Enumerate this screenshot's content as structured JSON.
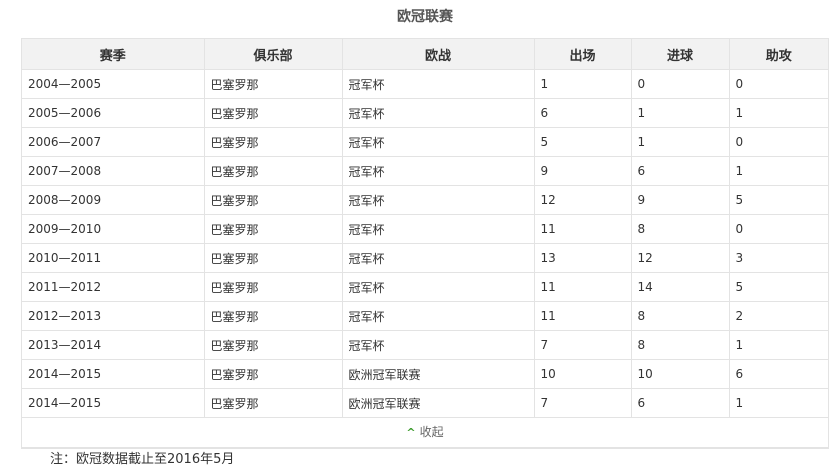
{
  "title": "欧冠联赛",
  "headers": [
    "赛季",
    "俱乐部",
    "欧战",
    "出场",
    "进球",
    "助攻"
  ],
  "rows": [
    [
      "2004—2005",
      "巴塞罗那",
      "冠军杯",
      "1",
      "0",
      "0"
    ],
    [
      "2005—2006",
      "巴塞罗那",
      "冠军杯",
      "6",
      "1",
      "1"
    ],
    [
      "2006—2007",
      "巴塞罗那",
      "冠军杯",
      "5",
      "1",
      "0"
    ],
    [
      "2007—2008",
      "巴塞罗那",
      "冠军杯",
      "9",
      "6",
      "1"
    ],
    [
      "2008—2009",
      "巴塞罗那",
      "冠军杯",
      "12",
      "9",
      "5"
    ],
    [
      "2009—2010",
      "巴塞罗那",
      "冠军杯",
      "11",
      "8",
      "0"
    ],
    [
      "2010—2011",
      "巴塞罗那",
      "冠军杯",
      "13",
      "12",
      "3"
    ],
    [
      "2011—2012",
      "巴塞罗那",
      "冠军杯",
      "11",
      "14",
      "5"
    ],
    [
      "2012—2013",
      "巴塞罗那",
      "冠军杯",
      "11",
      "8",
      "2"
    ],
    [
      "2013—2014",
      "巴塞罗那",
      "冠军杯",
      "7",
      "8",
      "1"
    ],
    [
      "2014—2015",
      "巴塞罗那",
      "欧洲冠军联赛",
      "10",
      "10",
      "6"
    ],
    [
      "2014—2015",
      "巴塞罗那",
      "欧洲冠军联赛",
      "7",
      "6",
      "1"
    ]
  ],
  "collapse_label": "收起",
  "collapse_icon": "chevron-up-icon",
  "note": "注：欧冠数据截止至2016年5月",
  "colors": {
    "accent": "#3a9a2a",
    "header_bg": "#f2f2f2"
  }
}
